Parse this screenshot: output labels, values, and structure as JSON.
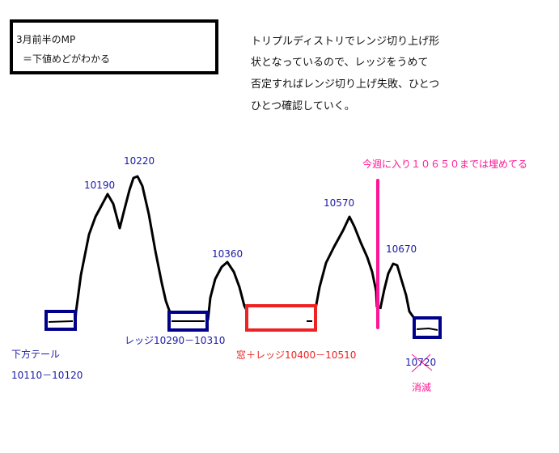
{
  "note_box": {
    "line1": "3月前半のMP",
    "line2": "＝下値めどがわかる"
  },
  "comment": {
    "lines": [
      "トリプルディストリでレンジ切り上げ形",
      "状となっているので、レッジをうめて",
      "否定すればレンジ切り上げ失敗、ひとつ",
      "ひとつ確認していく。"
    ]
  },
  "peaks": [
    "10190",
    "10220",
    "10360",
    "10570",
    "10670"
  ],
  "zones": {
    "lower_tail_label": "下方テール",
    "lower_tail_range": "10110－10120",
    "ledge1": "レッジ10290－10310",
    "window_ledge": "窓＋レッジ10400－10510",
    "ledge2_value": "10720",
    "ledge2_status": "消滅"
  },
  "this_week_note": "今週に入り１０６５０までは埋めてる",
  "colors": {
    "curve": "#000000",
    "ledge_box": "#00008b",
    "window_box": "#ee2222",
    "this_week_line": "#ff1493"
  }
}
